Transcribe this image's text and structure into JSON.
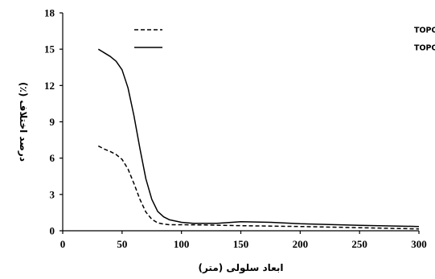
{
  "chart_data": {
    "type": "line",
    "xlabel": "ابعاد سلولی (متر)",
    "ylabel": "درصد اختلاف (٪)",
    "xlim": [
      0,
      300
    ],
    "ylim": [
      0,
      18
    ],
    "x_ticks": [
      "0",
      "50",
      "100",
      "150",
      "200",
      "250",
      "300"
    ],
    "y_ticks": [
      "0",
      "3",
      "6",
      "9",
      "12",
      "15",
      "18"
    ],
    "grid": false,
    "legend_position": "top-right",
    "series": [
      {
        "name": "اختلاف بین متوسط ساخص توپوگرافی DEMهای ASTER و TOPO",
        "style": "dashed",
        "color": "#000000",
        "points": [
          [
            30,
            7.0
          ],
          [
            35,
            6.75
          ],
          [
            40,
            6.55
          ],
          [
            45,
            6.3
          ],
          [
            50,
            5.9
          ],
          [
            55,
            5.1
          ],
          [
            60,
            3.9
          ],
          [
            65,
            2.6
          ],
          [
            70,
            1.55
          ],
          [
            75,
            0.95
          ],
          [
            80,
            0.65
          ],
          [
            85,
            0.55
          ],
          [
            90,
            0.5
          ],
          [
            100,
            0.5
          ],
          [
            120,
            0.48
          ],
          [
            150,
            0.42
          ],
          [
            200,
            0.35
          ],
          [
            250,
            0.25
          ],
          [
            300,
            0.15
          ]
        ]
      },
      {
        "name": "اختلاف بین متوسط ساخص توپوگرافی DEMهای SRTM و TOPO",
        "style": "solid",
        "color": "#000000",
        "points": [
          [
            30,
            15.0
          ],
          [
            35,
            14.7
          ],
          [
            40,
            14.4
          ],
          [
            45,
            14.0
          ],
          [
            50,
            13.3
          ],
          [
            55,
            11.8
          ],
          [
            60,
            9.5
          ],
          [
            65,
            6.8
          ],
          [
            70,
            4.3
          ],
          [
            75,
            2.6
          ],
          [
            80,
            1.6
          ],
          [
            85,
            1.15
          ],
          [
            90,
            0.9
          ],
          [
            100,
            0.7
          ],
          [
            110,
            0.62
          ],
          [
            130,
            0.62
          ],
          [
            150,
            0.75
          ],
          [
            175,
            0.7
          ],
          [
            200,
            0.58
          ],
          [
            250,
            0.45
          ],
          [
            300,
            0.35
          ]
        ]
      }
    ]
  }
}
